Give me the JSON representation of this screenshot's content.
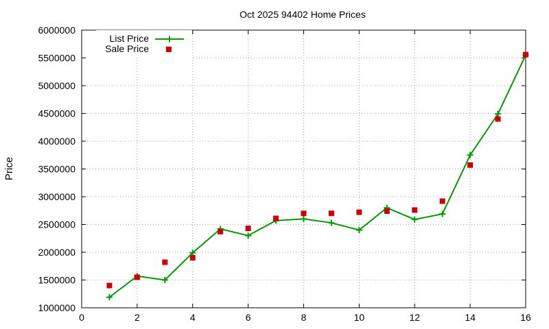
{
  "chart_data": {
    "type": "line",
    "title": "Oct 2025 94402 Home Prices",
    "xlabel": "",
    "ylabel": "Price",
    "xlim": [
      0,
      16
    ],
    "ylim": [
      1000000,
      6000000
    ],
    "x_ticks": [
      0,
      2,
      4,
      6,
      8,
      10,
      12,
      14,
      16
    ],
    "y_ticks": [
      1000000,
      1500000,
      2000000,
      2500000,
      3000000,
      3500000,
      4000000,
      4500000,
      5000000,
      5500000,
      6000000
    ],
    "x_tick_labels": [
      "0",
      "2",
      "4",
      "6",
      "8",
      "10",
      "12",
      "14",
      "16"
    ],
    "y_tick_labels": [
      "1000000",
      "1500000",
      "2000000",
      "2500000",
      "3000000",
      "3500000",
      "4000000",
      "4500000",
      "5000000",
      "5500000",
      "6000000"
    ],
    "grid": true,
    "legend_position": "top-left",
    "x": [
      1,
      2,
      3,
      4,
      5,
      6,
      7,
      8,
      9,
      10,
      11,
      12,
      13,
      14,
      15,
      16
    ],
    "series": [
      {
        "name": "List Price",
        "style": "lines+points",
        "marker": "plus",
        "color": "#009900",
        "values": [
          1190000,
          1570000,
          1500000,
          1990000,
          2420000,
          2300000,
          2570000,
          2600000,
          2530000,
          2400000,
          2800000,
          2590000,
          2690000,
          3750000,
          4490000,
          5550000
        ]
      },
      {
        "name": "Sale Price",
        "style": "points",
        "marker": "square",
        "color": "#cc0000",
        "values": [
          1400000,
          1550000,
          1820000,
          1900000,
          2370000,
          2430000,
          2610000,
          2700000,
          2700000,
          2720000,
          2740000,
          2760000,
          2920000,
          3570000,
          4400000,
          5560000
        ]
      }
    ]
  }
}
